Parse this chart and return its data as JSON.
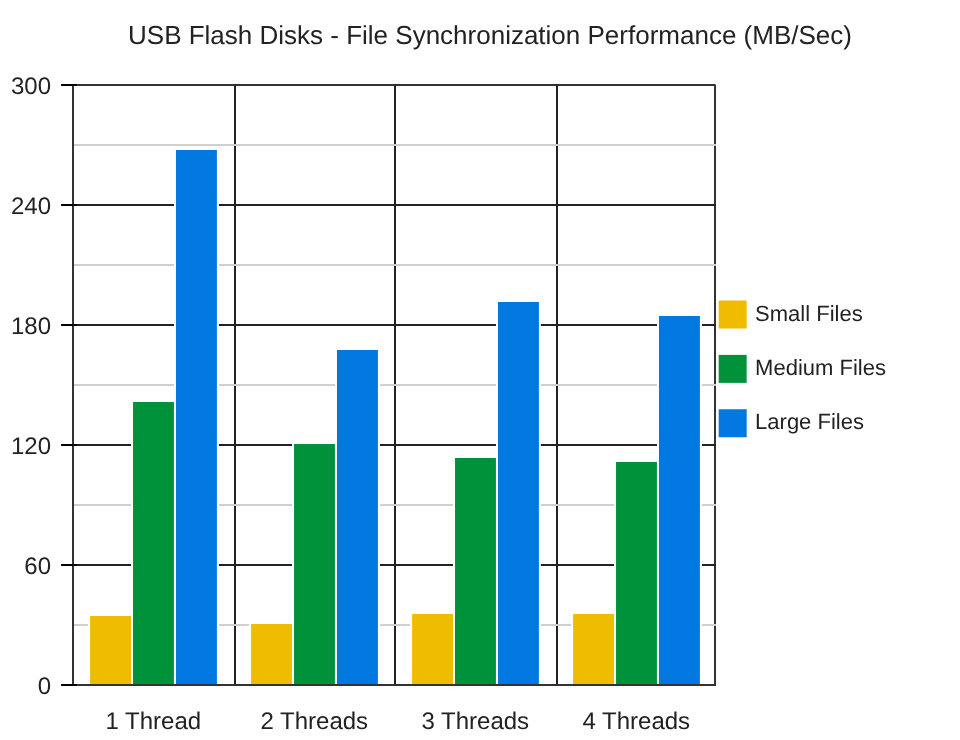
{
  "chart_data": {
    "type": "bar",
    "title": "USB Flash Disks - File Synchronization Performance (MB/Sec)",
    "categories": [
      "1 Thread",
      "2 Threads",
      "3 Threads",
      "4 Threads"
    ],
    "series": [
      {
        "name": "Small Files",
        "color": "#f0bc00",
        "values": [
          35,
          31,
          36,
          36
        ]
      },
      {
        "name": "Medium Files",
        "color": "#00923a",
        "values": [
          142,
          121,
          114,
          112
        ]
      },
      {
        "name": "Large Files",
        "color": "#0078e0",
        "values": [
          268,
          168,
          192,
          185
        ]
      }
    ],
    "ylim": [
      0,
      300
    ],
    "yticks": [
      0,
      60,
      120,
      180,
      240,
      300
    ],
    "grid": true,
    "legend": "right"
  }
}
